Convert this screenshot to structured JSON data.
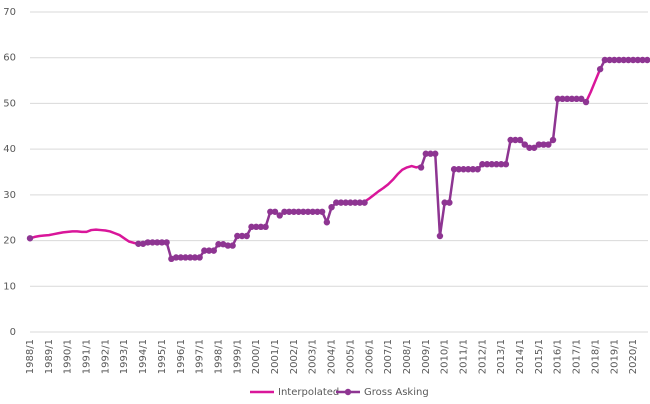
{
  "chart_data": {
    "type": "line",
    "categories": [
      "1988/1",
      null,
      null,
      null,
      "1989/1",
      null,
      null,
      null,
      "1990/1",
      null,
      null,
      null,
      "1991/1",
      null,
      null,
      null,
      "1992/1",
      null,
      null,
      null,
      "1993/1",
      null,
      null,
      null,
      "1994/1",
      null,
      null,
      null,
      "1995/1",
      null,
      null,
      null,
      "1996/1",
      null,
      null,
      null,
      "1997/1",
      null,
      null,
      null,
      "1998/1",
      null,
      null,
      null,
      "1999/1",
      null,
      null,
      null,
      "2000/1",
      null,
      null,
      null,
      "2001/1",
      null,
      null,
      null,
      "2002/1",
      null,
      null,
      null,
      "2003/1",
      null,
      null,
      null,
      "2004/1",
      null,
      null,
      null,
      "2005/1",
      null,
      null,
      null,
      "2006/1",
      null,
      null,
      null,
      "2007/1",
      null,
      null,
      null,
      "2008/1",
      null,
      null,
      null,
      "2009/1",
      null,
      null,
      null,
      "2010/1",
      null,
      null,
      null,
      "2011/1",
      null,
      null,
      null,
      "2012/1",
      null,
      null,
      null,
      "2013/1",
      null,
      null,
      null,
      "2014/1",
      null,
      null,
      null,
      "2015/1",
      null,
      null,
      null,
      "2016/1",
      null,
      null,
      null,
      "2017/1",
      null,
      null,
      null,
      "2018/1",
      null,
      null,
      null,
      "2019/1",
      null,
      null,
      null,
      "2020/1",
      null,
      null,
      null
    ],
    "series": [
      {
        "name": "Interpolated",
        "color": "#d9169a",
        "markers": false,
        "values": [
          20.5,
          20.8,
          21.0,
          21.1,
          21.2,
          21.4,
          21.6,
          21.8,
          21.9,
          22.0,
          22.0,
          21.9,
          21.9,
          22.3,
          22.4,
          22.3,
          22.2,
          22.0,
          21.6,
          21.2,
          20.5,
          19.8,
          19.5,
          19.3,
          19.3,
          null,
          null,
          null,
          null,
          null,
          null,
          null,
          null,
          null,
          null,
          null,
          null,
          null,
          null,
          null,
          null,
          null,
          null,
          null,
          null,
          null,
          null,
          null,
          null,
          null,
          null,
          null,
          null,
          null,
          null,
          null,
          null,
          null,
          null,
          null,
          null,
          null,
          null,
          null,
          null,
          null,
          null,
          null,
          null,
          null,
          28.3,
          28.5,
          29.2,
          30.0,
          30.8,
          31.5,
          32.3,
          33.3,
          34.5,
          35.5,
          36.0,
          36.3,
          36.0,
          36.3,
          null,
          null,
          null,
          null,
          null,
          null,
          null,
          null,
          null,
          null,
          null,
          null,
          null,
          null,
          null,
          null,
          null,
          null,
          null,
          null,
          null,
          null,
          null,
          null,
          null,
          null,
          null,
          null,
          null,
          null,
          null,
          null,
          null,
          null,
          50.3,
          52.5,
          55.0,
          57.5,
          null,
          null,
          null,
          null,
          null,
          null,
          null,
          null,
          null,
          null
        ]
      },
      {
        "name": "Gross Asking",
        "color": "#8e3592",
        "markers": true,
        "values": [
          20.5,
          null,
          null,
          null,
          null,
          null,
          null,
          null,
          null,
          null,
          null,
          null,
          null,
          null,
          null,
          null,
          null,
          null,
          null,
          null,
          null,
          null,
          null,
          19.3,
          19.3,
          19.6,
          19.6,
          19.6,
          19.6,
          19.6,
          16.0,
          16.3,
          16.3,
          16.3,
          16.3,
          16.3,
          16.3,
          17.8,
          17.8,
          17.8,
          19.2,
          19.2,
          18.9,
          18.9,
          21.0,
          21.0,
          21.0,
          23.0,
          23.0,
          23.0,
          23.0,
          26.3,
          26.3,
          25.5,
          26.3,
          26.3,
          26.3,
          26.3,
          26.3,
          26.3,
          26.3,
          26.3,
          26.3,
          24.0,
          27.3,
          28.3,
          28.3,
          28.3,
          28.3,
          28.3,
          28.3,
          28.3,
          null,
          null,
          null,
          null,
          null,
          null,
          null,
          null,
          null,
          null,
          null,
          36.0,
          39.0,
          39.0,
          39.0,
          21.0,
          28.3,
          28.3,
          35.6,
          35.6,
          35.6,
          35.6,
          35.6,
          35.6,
          36.7,
          36.7,
          36.7,
          36.7,
          36.7,
          36.7,
          42.0,
          42.0,
          42.0,
          41.0,
          40.3,
          40.3,
          41.0,
          41.0,
          41.0,
          42.0,
          51.0,
          51.0,
          51.0,
          51.0,
          51.0,
          51.0,
          50.3,
          null,
          null,
          57.5,
          59.5,
          59.5,
          59.5,
          59.5,
          59.5,
          59.5,
          59.5,
          59.5,
          59.5,
          59.5
        ]
      }
    ],
    "ylim": [
      0,
      70
    ],
    "yticks": [
      0,
      10,
      20,
      30,
      40,
      50,
      60,
      70
    ],
    "grid": true
  }
}
